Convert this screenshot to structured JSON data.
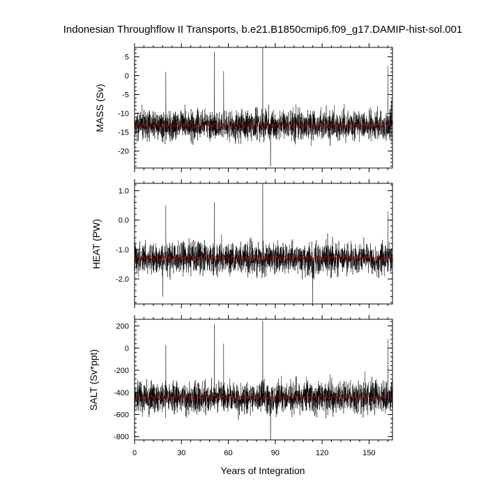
{
  "figure": {
    "title": "Indonesian Throughflow II Transports, b.e21.B1850cmip6.f09_g17.DAMIP-hist-sol.001"
  },
  "colors": {
    "monthly": "#000000",
    "annual_mean": "#e00000",
    "background": "#ffffff"
  },
  "chart_data": [
    {
      "type": "line",
      "ylabel": "MASS (Sv)",
      "xlabel": "",
      "xlim": [
        0,
        165
      ],
      "ylim": [
        -24.5,
        7.5
      ],
      "xticks": [
        0,
        30,
        60,
        90,
        120,
        150
      ],
      "yticks": [
        5,
        0,
        -5,
        -10,
        -15,
        -20
      ],
      "ytick_labels": [
        "5",
        "0",
        "-5",
        "-10",
        "-15",
        "-20"
      ],
      "grid": false,
      "series": [
        {
          "style": "thin black monthly series",
          "x_start": 0,
          "x_step": 0.0833333,
          "gen": {
            "mean": -13.2,
            "amp": 2.0,
            "noise": 3.4,
            "min": -24.5,
            "max": 2.5,
            "seed": 1
          },
          "spikes": [
            [
              51.0,
              6.3
            ],
            [
              82.0,
              7.8
            ],
            [
              87.0,
              -24.0
            ],
            [
              162.0,
              2.6
            ],
            [
              20.0,
              1.0
            ],
            [
              57.0,
              1.2
            ]
          ]
        },
        {
          "style": "red annual mean",
          "x_start": 0.5,
          "x_step": 1.0,
          "values": [
            -12.9,
            -13.2,
            -12.5,
            -13.9,
            -13.4,
            -12.8,
            -13.5,
            -12.6,
            -13.7,
            -13.3,
            -12.7,
            -12.9,
            -13.8,
            -13.1,
            -12.6,
            -13.5,
            -13.9,
            -12.8,
            -13.2,
            -12.4,
            -13.6,
            -13.0,
            -12.9,
            -13.7,
            -13.3,
            -12.8,
            -13.5,
            -13.1,
            -12.6,
            -13.4,
            -13.8,
            -12.9,
            -13.2,
            -12.7,
            -13.6,
            -13.0,
            -12.5,
            -13.3,
            -13.9,
            -13.1,
            -12.8,
            -13.4,
            -12.6,
            -13.7,
            -13.2,
            -12.9,
            -13.5,
            -12.7,
            -13.1,
            -13.8,
            -13.0,
            -12.6,
            -13.4,
            -12.9,
            -13.6,
            -13.2,
            -12.7,
            -13.5,
            -13.0,
            -12.8,
            -13.7,
            -13.3,
            -12.6,
            -13.1,
            -13.9,
            -12.8,
            -13.4,
            -13.0,
            -12.7,
            -13.6,
            -13.2,
            -12.9,
            -13.5,
            -12.6,
            -13.3,
            -13.8,
            -13.0,
            -12.7,
            -13.4,
            -13.1,
            -12.8,
            -13.6,
            -13.2,
            -12.5,
            -13.0,
            -13.7,
            -12.9,
            -13.3,
            -12.8,
            -13.5,
            -13.1,
            -12.6,
            -13.4,
            -13.9,
            -12.9,
            -13.2,
            -12.7,
            -13.6,
            -13.0,
            -12.8,
            -13.3,
            -13.7,
            -12.6,
            -13.1,
            -13.5,
            -12.9,
            -13.2,
            -12.7,
            -13.8,
            -13.0,
            -12.6,
            -13.4,
            -12.9,
            -13.6,
            -13.1,
            -12.8,
            -13.5,
            -13.2,
            -12.4,
            -12.9,
            -13.7,
            -13.0,
            -12.6,
            -13.3,
            -13.8,
            -12.9,
            -13.1,
            -12.7,
            -13.5,
            -13.2,
            -12.6,
            -13.4,
            -13.9,
            -12.8,
            -13.0,
            -13.6,
            -12.9,
            -13.3,
            -12.7,
            -13.5,
            -13.1,
            -12.8,
            -13.4,
            -12.6,
            -13.7,
            -13.2,
            -12.9,
            -13.5,
            -13.0,
            -12.7,
            -13.6,
            -13.2,
            -12.8,
            -13.4,
            -13.0,
            -12.6,
            -13.3,
            -13.8,
            -12.9,
            -13.1,
            -12.7,
            -13.5,
            -13.2,
            -12.8,
            -13.6
          ]
        }
      ]
    },
    {
      "type": "line",
      "ylabel": "HEAT (PW)",
      "xlabel": "",
      "xlim": [
        0,
        165
      ],
      "ylim": [
        -2.85,
        1.25
      ],
      "xticks": [
        0,
        30,
        60,
        90,
        120,
        150
      ],
      "yticks": [
        1.0,
        0.0,
        -1.0,
        -2.0
      ],
      "ytick_labels": [
        "1.0",
        "0.0",
        "-1.0",
        "-2.0"
      ],
      "grid": false,
      "series": [
        {
          "style": "thin black monthly series",
          "x_start": 0,
          "x_step": 0.0833333,
          "gen": {
            "mean": -1.3,
            "amp": 0.28,
            "noise": 0.45,
            "min": -2.8,
            "max": 0.5,
            "seed": 2
          },
          "spikes": [
            [
              51.0,
              0.6
            ],
            [
              82.0,
              1.25
            ],
            [
              114.0,
              -2.85
            ],
            [
              162.0,
              0.3
            ],
            [
              20.0,
              0.5
            ],
            [
              18.0,
              -2.6
            ]
          ]
        },
        {
          "style": "red annual mean",
          "x_start": 0.5,
          "x_step": 1.0,
          "values": [
            -1.25,
            -1.31,
            -1.22,
            -1.38,
            -1.3,
            -1.24,
            -1.33,
            -1.21,
            -1.36,
            -1.29,
            -1.23,
            -1.27,
            -1.37,
            -1.28,
            -1.22,
            -1.34,
            -1.39,
            -1.25,
            -1.3,
            -1.2,
            -1.35,
            -1.27,
            -1.26,
            -1.36,
            -1.31,
            -1.24,
            -1.33,
            -1.28,
            -1.22,
            -1.32,
            -1.37,
            -1.26,
            -1.3,
            -1.23,
            -1.35,
            -1.27,
            -1.21,
            -1.31,
            -1.38,
            -1.28,
            -1.25,
            -1.32,
            -1.22,
            -1.36,
            -1.3,
            -1.18,
            -1.2,
            -1.24,
            -1.29,
            -1.37,
            -1.27,
            -1.22,
            -1.32,
            -1.26,
            -1.35,
            -1.3,
            -1.23,
            -1.34,
            -1.27,
            -1.25,
            -1.36,
            -1.31,
            -1.22,
            -1.28,
            -1.38,
            -1.25,
            -1.32,
            -1.27,
            -1.23,
            -1.35,
            -1.3,
            -1.26,
            -1.33,
            -1.22,
            -1.31,
            -1.37,
            -1.27,
            -1.23,
            -1.32,
            -1.28,
            -1.25,
            -1.35,
            -1.3,
            -1.21,
            -1.27,
            -1.36,
            -1.26,
            -1.31,
            -1.25,
            -1.33,
            -1.28,
            -1.22,
            -1.32,
            -1.38,
            -1.26,
            -1.3,
            -1.23,
            -1.35,
            -1.27,
            -1.25,
            -1.31,
            -1.36,
            -1.22,
            -1.28,
            -1.33,
            -1.26,
            -1.3,
            -1.23,
            -1.37,
            -1.27,
            -1.22,
            -1.32,
            -1.26,
            -1.35,
            -1.28,
            -1.25,
            -1.33,
            -1.3,
            -1.2,
            -1.26,
            -1.36,
            -1.27,
            -1.22,
            -1.31,
            -1.37,
            -1.26,
            -1.28,
            -1.23,
            -1.33,
            -1.3,
            -1.22,
            -1.32,
            -1.38,
            -1.25,
            -1.27,
            -1.35,
            -1.26,
            -1.31,
            -1.23,
            -1.33,
            -1.28,
            -1.25,
            -1.32,
            -1.22,
            -1.36,
            -1.3,
            -1.26,
            -1.33,
            -1.27,
            -1.23,
            -1.35,
            -1.3,
            -1.25,
            -1.32,
            -1.27,
            -1.22,
            -1.31,
            -1.37,
            -1.26,
            -1.28,
            -1.23,
            -1.33,
            -1.3,
            -1.25,
            -1.35
          ]
        }
      ]
    },
    {
      "type": "line",
      "ylabel": "SALT (Sv*ppt)",
      "xlabel": "Years of Integration",
      "xlim": [
        0,
        165
      ],
      "ylim": [
        -830,
        260
      ],
      "xticks": [
        0,
        30,
        60,
        90,
        120,
        150
      ],
      "xtick_labels": [
        "0",
        "30",
        "60",
        "90",
        "120",
        "150"
      ],
      "yticks": [
        200,
        0,
        -200,
        -400,
        -600,
        -800
      ],
      "ytick_labels": [
        "200",
        "0",
        "-200",
        "-400",
        "-600",
        "-800"
      ],
      "grid": false,
      "series": [
        {
          "style": "thin black monthly series",
          "x_start": 0,
          "x_step": 0.0833333,
          "gen": {
            "mean": -445,
            "amp": 70,
            "noise": 120,
            "min": -810,
            "max": 60,
            "seed": 3
          },
          "spikes": [
            [
              51.0,
              215
            ],
            [
              82.0,
              245
            ],
            [
              87.0,
              -830
            ],
            [
              162.0,
              80
            ],
            [
              20.0,
              30
            ],
            [
              57.0,
              40
            ]
          ]
        },
        {
          "style": "red annual mean",
          "x_start": 0.5,
          "x_step": 1.0,
          "values": [
            -435,
            -448,
            -425,
            -462,
            -450,
            -432,
            -455,
            -428,
            -460,
            -446,
            -430,
            -438,
            -463,
            -442,
            -427,
            -456,
            -467,
            -433,
            -447,
            -422,
            -458,
            -440,
            -437,
            -461,
            -449,
            -431,
            -455,
            -443,
            -426,
            -452,
            -464,
            -436,
            -447,
            -429,
            -458,
            -440,
            -423,
            -449,
            -466,
            -442,
            -433,
            -451,
            -427,
            -461,
            -447,
            -405,
            -415,
            -430,
            -444,
            -464,
            -440,
            -426,
            -452,
            -436,
            -458,
            -447,
            -429,
            -456,
            -440,
            -433,
            -461,
            -449,
            -426,
            -443,
            -467,
            -433,
            -451,
            -440,
            -429,
            -458,
            -447,
            -436,
            -455,
            -426,
            -449,
            -464,
            -440,
            -429,
            -451,
            -443,
            -433,
            -458,
            -447,
            -423,
            -440,
            -461,
            -436,
            -449,
            -433,
            -455,
            -443,
            -426,
            -451,
            -466,
            -436,
            -447,
            -429,
            -458,
            -440,
            -433,
            -449,
            -461,
            -426,
            -443,
            -455,
            -436,
            -447,
            -429,
            -464,
            -440,
            -426,
            -451,
            -436,
            -458,
            -443,
            -433,
            -455,
            -447,
            -422,
            -436,
            -461,
            -440,
            -426,
            -449,
            -464,
            -436,
            -443,
            -429,
            -455,
            -447,
            -426,
            -451,
            -466,
            -433,
            -440,
            -458,
            -436,
            -449,
            -429,
            -455,
            -443,
            -433,
            -451,
            -426,
            -461,
            -447,
            -436,
            -455,
            -440,
            -429,
            -458,
            -447,
            -433,
            -451,
            -440,
            -426,
            -449,
            -464,
            -436,
            -443,
            -429,
            -455,
            -447,
            -433,
            -458
          ]
        }
      ]
    }
  ]
}
